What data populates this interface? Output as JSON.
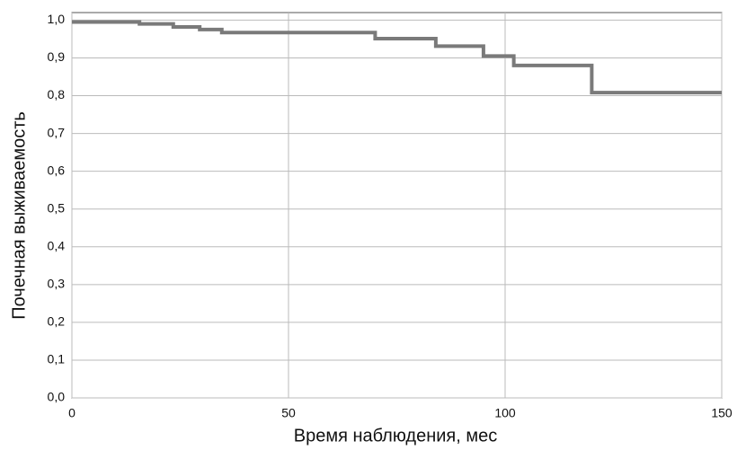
{
  "chart_data": {
    "type": "step",
    "x_label": "Время наблюдения, мес",
    "y_label": "Почечная выживаемость",
    "series": [
      {
        "color": "#7a7a7a",
        "x": [
          0,
          15.6,
          23.4,
          29.5,
          34.6,
          70,
          84,
          95,
          102,
          120,
          150
        ],
        "values": [
          0.995,
          0.99,
          0.982,
          0.975,
          0.967,
          0.951,
          0.931,
          0.905,
          0.88,
          0.808,
          0.808
        ]
      }
    ],
    "xlim": [
      0,
      150
    ],
    "xticks": [
      0,
      50,
      100,
      150
    ],
    "ylim": [
      0,
      1.02
    ],
    "yticks": [
      {
        "value": 0,
        "label": "0,0"
      },
      {
        "value": 0.1,
        "label": "0,1"
      },
      {
        "value": 0.2,
        "label": "0,2"
      },
      {
        "value": 0.3,
        "label": "0,3"
      },
      {
        "value": 0.4,
        "label": "0,4"
      },
      {
        "value": 0.5,
        "label": "0,5"
      },
      {
        "value": 0.6,
        "label": "0,6"
      },
      {
        "value": 0.7,
        "label": "0,7"
      },
      {
        "value": 0.8,
        "label": "0,8"
      },
      {
        "value": 0.9,
        "label": "0,9"
      },
      {
        "value": 1,
        "label": "1,0"
      }
    ],
    "grid": true
  }
}
